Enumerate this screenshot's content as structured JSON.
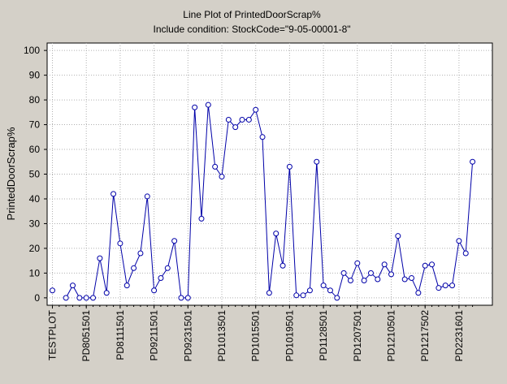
{
  "chart_data": {
    "type": "line",
    "title": "Line Plot of PrintedDoorScrap%",
    "subtitle": "Include condition: StockCode=\"9-05-00001-8\"",
    "xlabel": "",
    "ylabel": "PrintedDoorScrap%",
    "ylim": [
      -3,
      103
    ],
    "yticks": [
      0,
      10,
      20,
      30,
      40,
      50,
      60,
      70,
      80,
      90,
      100
    ],
    "grid": true,
    "legend": "none",
    "line_color": "#0000a8",
    "x_tick_labels": [
      {
        "index": 0,
        "label": "TESTPLOT"
      },
      {
        "index": 5,
        "label": "PD8051501"
      },
      {
        "index": 10,
        "label": "PD8111501"
      },
      {
        "index": 15,
        "label": "PD9211501"
      },
      {
        "index": 20,
        "label": "PD9231501"
      },
      {
        "index": 25,
        "label": "PD1013501"
      },
      {
        "index": 30,
        "label": "PD1015501"
      },
      {
        "index": 35,
        "label": "PD1019501"
      },
      {
        "index": 40,
        "label": "PD1128501"
      },
      {
        "index": 45,
        "label": "PD1207501"
      },
      {
        "index": 50,
        "label": "PD1210501"
      },
      {
        "index": 55,
        "label": "PD1217502"
      },
      {
        "index": 60,
        "label": "PD2231601"
      }
    ],
    "series": [
      {
        "values": [
          3,
          null,
          0,
          5,
          0,
          0,
          0,
          16,
          2,
          42,
          22,
          5,
          12,
          18,
          41,
          3,
          8,
          12,
          23,
          0,
          0,
          77,
          32,
          78,
          53,
          49,
          72,
          69,
          72,
          72,
          76,
          65,
          2,
          26,
          13,
          53,
          1,
          1,
          3,
          55,
          5,
          3,
          0,
          10,
          7,
          14,
          7,
          10,
          7.5,
          13.5,
          9.5,
          25,
          7.5,
          8,
          2,
          13,
          13.5,
          4,
          5,
          5,
          23,
          18,
          55
        ]
      }
    ]
  }
}
